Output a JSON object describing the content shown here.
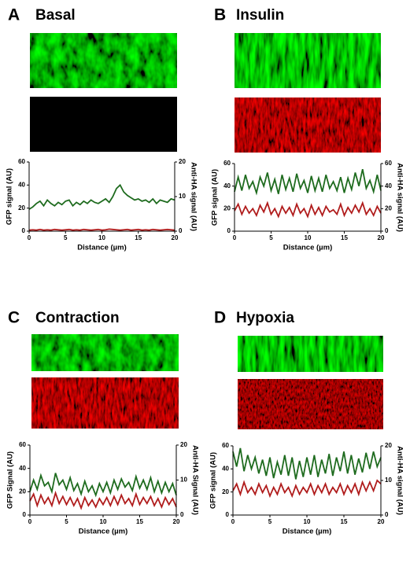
{
  "chart_data": [
    {
      "type": "line",
      "panel_label": "A",
      "title": "Basal",
      "xlabel": "Distance (µm)",
      "ylabel": "GFP signal (AU)",
      "y2label": "Anti-HA signal (AU)",
      "xlim": [
        0,
        20
      ],
      "xticks": [
        0,
        5,
        10,
        15,
        20
      ],
      "ylim": [
        0,
        60
      ],
      "yticks": [
        0,
        20,
        40,
        60
      ],
      "y2lim": [
        0,
        20
      ],
      "y2ticks": [
        0,
        10,
        20
      ],
      "x": [
        0,
        0.5,
        1,
        1.5,
        2,
        2.5,
        3,
        3.5,
        4,
        4.5,
        5,
        5.5,
        6,
        6.5,
        7,
        7.5,
        8,
        8.5,
        9,
        9.5,
        10,
        10.5,
        11,
        11.5,
        12,
        12.5,
        13,
        13.5,
        14,
        14.5,
        15,
        15.5,
        16,
        16.5,
        17,
        17.5,
        18,
        18.5,
        19,
        19.5,
        20
      ],
      "series": [
        {
          "color": "#1e6b1e",
          "values": [
            19,
            21,
            24,
            26,
            22,
            27,
            24,
            22,
            25,
            23,
            26,
            27,
            22,
            25,
            23,
            26,
            24,
            27,
            25,
            24,
            26,
            28,
            25,
            30,
            37,
            40,
            34,
            31,
            29,
            27,
            28,
            26,
            27,
            25,
            28,
            24,
            27,
            26,
            25,
            28,
            27
          ]
        },
        {
          "color": "#b01c1c",
          "axis": "y2",
          "values": [
            0.3,
            0.4,
            0.3,
            0.5,
            0.3,
            0.4,
            0.3,
            0.5,
            0.4,
            0.3,
            0.4,
            0.5,
            0.3,
            0.4,
            0.3,
            0.5,
            0.4,
            0.3,
            0.4,
            0.5,
            0.3,
            0.4,
            0.6,
            0.5,
            0.4,
            0.3,
            0.4,
            0.5,
            0.3,
            0.4,
            0.5,
            0.3,
            0.4,
            0.3,
            0.5,
            0.4,
            0.3,
            0.4,
            0.5,
            0.4,
            0.3
          ]
        }
      ]
    },
    {
      "type": "line",
      "panel_label": "B",
      "title": "Insulin",
      "xlabel": "Distance (µm)",
      "ylabel": "GFP signal (AU)",
      "y2label": "Anti-HA signal (AU)",
      "xlim": [
        0,
        20
      ],
      "xticks": [
        0,
        5,
        10,
        15,
        20
      ],
      "ylim": [
        0,
        60
      ],
      "yticks": [
        0,
        20,
        40,
        60
      ],
      "y2lim": [
        0,
        60
      ],
      "y2ticks": [
        0,
        20,
        40,
        60
      ],
      "x": [
        0,
        0.5,
        1,
        1.5,
        2,
        2.5,
        3,
        3.5,
        4,
        4.5,
        5,
        5.5,
        6,
        6.5,
        7,
        7.5,
        8,
        8.5,
        9,
        9.5,
        10,
        10.5,
        11,
        11.5,
        12,
        12.5,
        13,
        13.5,
        14,
        14.5,
        15,
        15.5,
        16,
        16.5,
        17,
        17.5,
        18,
        18.5,
        19,
        19.5,
        20
      ],
      "series": [
        {
          "color": "#1e6b1e",
          "values": [
            35,
            48,
            36,
            50,
            38,
            44,
            34,
            48,
            40,
            52,
            36,
            46,
            33,
            50,
            37,
            47,
            35,
            51,
            38,
            45,
            34,
            49,
            36,
            47,
            35,
            50,
            38,
            44,
            36,
            48,
            34,
            47,
            37,
            52,
            40,
            55,
            38,
            45,
            35,
            50,
            36
          ]
        },
        {
          "color": "#b01c1c",
          "axis": "y2",
          "values": [
            18,
            24,
            15,
            22,
            16,
            20,
            14,
            23,
            17,
            25,
            15,
            20,
            13,
            22,
            16,
            21,
            14,
            24,
            16,
            20,
            13,
            23,
            15,
            21,
            14,
            22,
            17,
            19,
            15,
            24,
            14,
            21,
            16,
            23,
            17,
            25,
            15,
            20,
            14,
            22,
            16
          ]
        }
      ]
    },
    {
      "type": "line",
      "panel_label": "C",
      "title": "Contraction",
      "xlabel": "Distance (µm)",
      "ylabel": "GFP Signal (AU)",
      "y2label": "Anti-HA Signal (AU)",
      "xlim": [
        0,
        20
      ],
      "xticks": [
        0,
        5,
        10,
        15,
        20
      ],
      "ylim": [
        0,
        60
      ],
      "yticks": [
        0,
        20,
        40,
        60
      ],
      "y2lim": [
        0,
        20
      ],
      "y2ticks": [
        0,
        10,
        20
      ],
      "x": [
        0,
        0.5,
        1,
        1.5,
        2,
        2.5,
        3,
        3.5,
        4,
        4.5,
        5,
        5.5,
        6,
        6.5,
        7,
        7.5,
        8,
        8.5,
        9,
        9.5,
        10,
        10.5,
        11,
        11.5,
        12,
        12.5,
        13,
        13.5,
        14,
        14.5,
        15,
        15.5,
        16,
        16.5,
        17,
        17.5,
        18,
        18.5,
        19,
        19.5,
        20
      ],
      "series": [
        {
          "color": "#1e6b1e",
          "values": [
            20,
            30,
            22,
            34,
            25,
            28,
            20,
            36,
            26,
            30,
            22,
            32,
            21,
            27,
            18,
            29,
            20,
            25,
            17,
            27,
            20,
            28,
            19,
            30,
            22,
            31,
            24,
            28,
            21,
            33,
            23,
            30,
            22,
            32,
            20,
            29,
            19,
            28,
            20,
            27,
            17
          ]
        },
        {
          "color": "#b01c1c",
          "axis": "y2",
          "values": [
            4,
            6,
            2.7,
            5.7,
            3.3,
            5,
            2.7,
            6.3,
            3.3,
            5.3,
            3,
            5,
            2.7,
            4.7,
            2,
            5,
            2.7,
            4.3,
            2.3,
            4.7,
            3,
            5,
            2.7,
            5.3,
            3,
            5.7,
            3.3,
            4.7,
            2.7,
            6,
            3,
            5,
            3.3,
            5.3,
            2.7,
            4.7,
            2.3,
            5,
            3,
            4.7,
            2.3
          ]
        }
      ]
    },
    {
      "type": "line",
      "panel_label": "D",
      "title": "Hypoxia",
      "xlabel": "Distance (µm)",
      "ylabel": "GFP signal (AU)",
      "y2label": "Anti-HA signal (AU)",
      "xlim": [
        0,
        20
      ],
      "xticks": [
        0,
        5,
        10,
        15,
        20
      ],
      "ylim": [
        0,
        60
      ],
      "yticks": [
        0,
        20,
        40,
        60
      ],
      "y2lim": [
        0,
        20
      ],
      "y2ticks": [
        0,
        10,
        20
      ],
      "x": [
        0,
        0.5,
        1,
        1.5,
        2,
        2.5,
        3,
        3.5,
        4,
        4.5,
        5,
        5.5,
        6,
        6.5,
        7,
        7.5,
        8,
        8.5,
        9,
        9.5,
        10,
        10.5,
        11,
        11.5,
        12,
        12.5,
        13,
        13.5,
        14,
        14.5,
        15,
        15.5,
        16,
        16.5,
        17,
        17.5,
        18,
        18.5,
        19,
        19.5,
        20
      ],
      "series": [
        {
          "color": "#1e6b1e",
          "values": [
            55,
            42,
            58,
            38,
            52,
            40,
            50,
            36,
            48,
            34,
            50,
            32,
            46,
            35,
            52,
            34,
            50,
            31,
            47,
            33,
            50,
            35,
            52,
            33,
            48,
            36,
            53,
            34,
            50,
            38,
            55,
            36,
            52,
            35,
            49,
            37,
            54,
            40,
            55,
            42,
            50
          ]
        },
        {
          "color": "#b01c1c",
          "axis": "y2",
          "values": [
            7,
            9,
            6,
            9.5,
            6.5,
            8,
            6,
            9,
            6.5,
            8.5,
            5.5,
            8,
            6,
            9,
            6.5,
            8,
            5.5,
            8.5,
            6,
            8,
            6.5,
            9,
            6,
            8.5,
            6.5,
            9,
            6,
            8,
            6.5,
            9,
            6,
            8.5,
            6.5,
            9,
            6,
            9.5,
            7,
            9.5,
            7,
            10,
            9
          ]
        }
      ]
    }
  ]
}
